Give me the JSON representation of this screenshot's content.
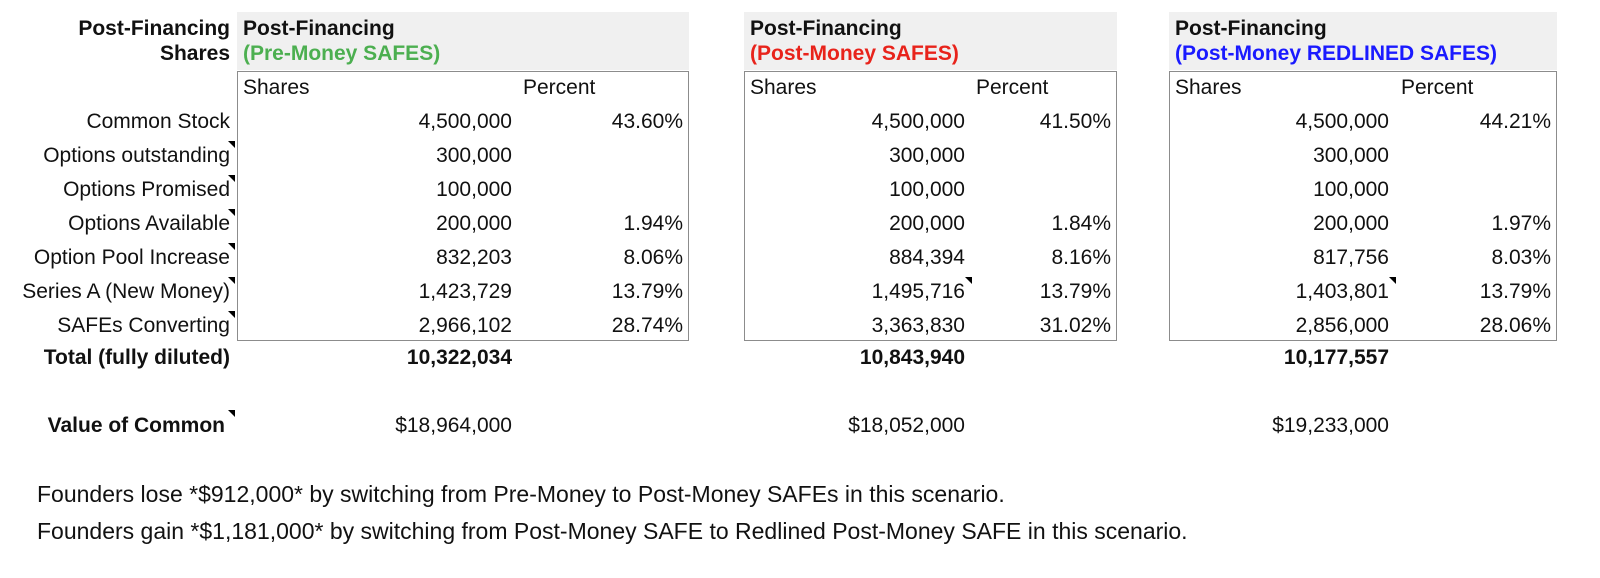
{
  "row_header": {
    "line1": "Post-Financing",
    "line2": "Shares"
  },
  "row_labels": [
    "Common Stock",
    "Options outstanding",
    "Options Promised",
    "Options Available",
    "Option Pool Increase",
    "Series A (New Money)",
    "SAFEs Converting"
  ],
  "total_label": "Total (fully diluted)",
  "value_label": "Value of Common",
  "tables": [
    {
      "title": "Post-Financing",
      "subtitle": "(Pre-Money SAFES)",
      "subtitle_color": "#4caf50",
      "col_shares": "Shares",
      "col_percent": "Percent",
      "shares": [
        "4,500,000",
        "300,000",
        "100,000",
        "200,000",
        "832,203",
        "1,423,729",
        "2,966,102"
      ],
      "percents": [
        "43.60%",
        "",
        "",
        "1.94%",
        "8.06%",
        "13.79%",
        "28.74%"
      ],
      "total": "10,322,034",
      "value": "$18,964,000"
    },
    {
      "title": "Post-Financing",
      "subtitle": "(Post-Money SAFES)",
      "subtitle_color": "#e8231b",
      "col_shares": "Shares",
      "col_percent": "Percent",
      "shares": [
        "4,500,000",
        "300,000",
        "100,000",
        "200,000",
        "884,394",
        "1,495,716",
        "3,363,830"
      ],
      "percents": [
        "41.50%",
        "",
        "",
        "1.84%",
        "8.16%",
        "13.79%",
        "31.02%"
      ],
      "total": "10,843,940",
      "value": "$18,052,000"
    },
    {
      "title": "Post-Financing",
      "subtitle": "(Post-Money REDLINED SAFES)",
      "subtitle_color": "#1a1aff",
      "col_shares": "Shares",
      "col_percent": "Percent",
      "shares": [
        "4,500,000",
        "300,000",
        "100,000",
        "200,000",
        "817,756",
        "1,403,801",
        "2,856,000"
      ],
      "percents": [
        "44.21%",
        "",
        "",
        "1.97%",
        "8.03%",
        "13.79%",
        "28.06%"
      ],
      "total": "10,177,557",
      "value": "$19,233,000"
    }
  ],
  "notes": [
    "Founders lose  *$912,000*  by switching from Pre-Money to Post-Money SAFEs in this scenario.",
    "Founders gain  *$1,181,000*  by switching from Post-Money SAFE to Redlined Post-Money SAFE in this scenario."
  ]
}
